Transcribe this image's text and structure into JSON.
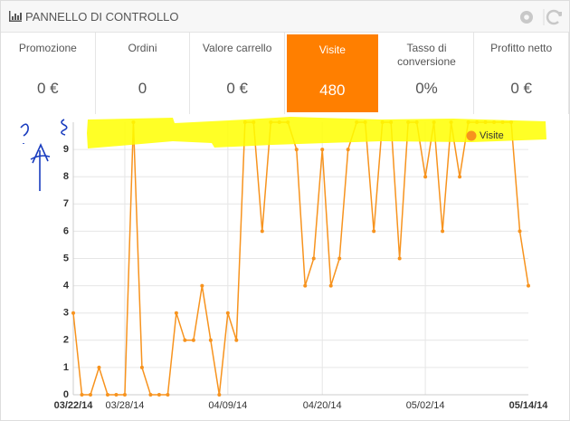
{
  "header": {
    "title": "PANNELLO DI CONTROLLO"
  },
  "kpis": {
    "active_index": 3,
    "items": [
      {
        "label": "Promozione",
        "value": "0 €"
      },
      {
        "label": "Ordini",
        "value": "0"
      },
      {
        "label": "Valore carrello",
        "value": "0 €"
      },
      {
        "label": "Visite",
        "value": "480"
      },
      {
        "label": "Tasso di conversione",
        "value": "0%"
      },
      {
        "label": "Profitto netto",
        "value": "0 €"
      }
    ]
  },
  "chart_data": {
    "type": "line",
    "categories": [
      "03/22/14",
      null,
      null,
      null,
      null,
      null,
      "03/28/14",
      null,
      null,
      null,
      null,
      null,
      null,
      null,
      null,
      null,
      null,
      null,
      "04/09/14",
      null,
      null,
      null,
      null,
      null,
      null,
      null,
      null,
      null,
      null,
      "04/20/14",
      null,
      null,
      null,
      null,
      null,
      null,
      null,
      null,
      null,
      null,
      null,
      "05/02/14",
      null,
      null,
      null,
      null,
      null,
      null,
      null,
      null,
      null,
      null,
      null,
      "05/14/14"
    ],
    "series": [
      {
        "name": "Visite",
        "color": "#f7931e",
        "values": [
          3,
          0,
          0,
          1,
          0,
          0,
          0,
          10,
          1,
          0,
          0,
          0,
          3,
          2,
          2,
          4,
          2,
          0,
          3,
          2,
          10,
          10,
          6,
          10,
          10,
          10,
          9,
          4,
          5,
          9,
          4,
          5,
          9,
          10,
          10,
          6,
          10,
          10,
          5,
          10,
          10,
          8,
          10,
          6,
          10,
          8,
          10,
          10,
          10,
          10,
          10,
          10,
          6,
          4
        ]
      }
    ],
    "ylim": [
      0,
      10
    ],
    "yticks": [
      0,
      1,
      2,
      3,
      4,
      5,
      6,
      7,
      8,
      9
    ],
    "grid": true,
    "legend": "top-right"
  }
}
